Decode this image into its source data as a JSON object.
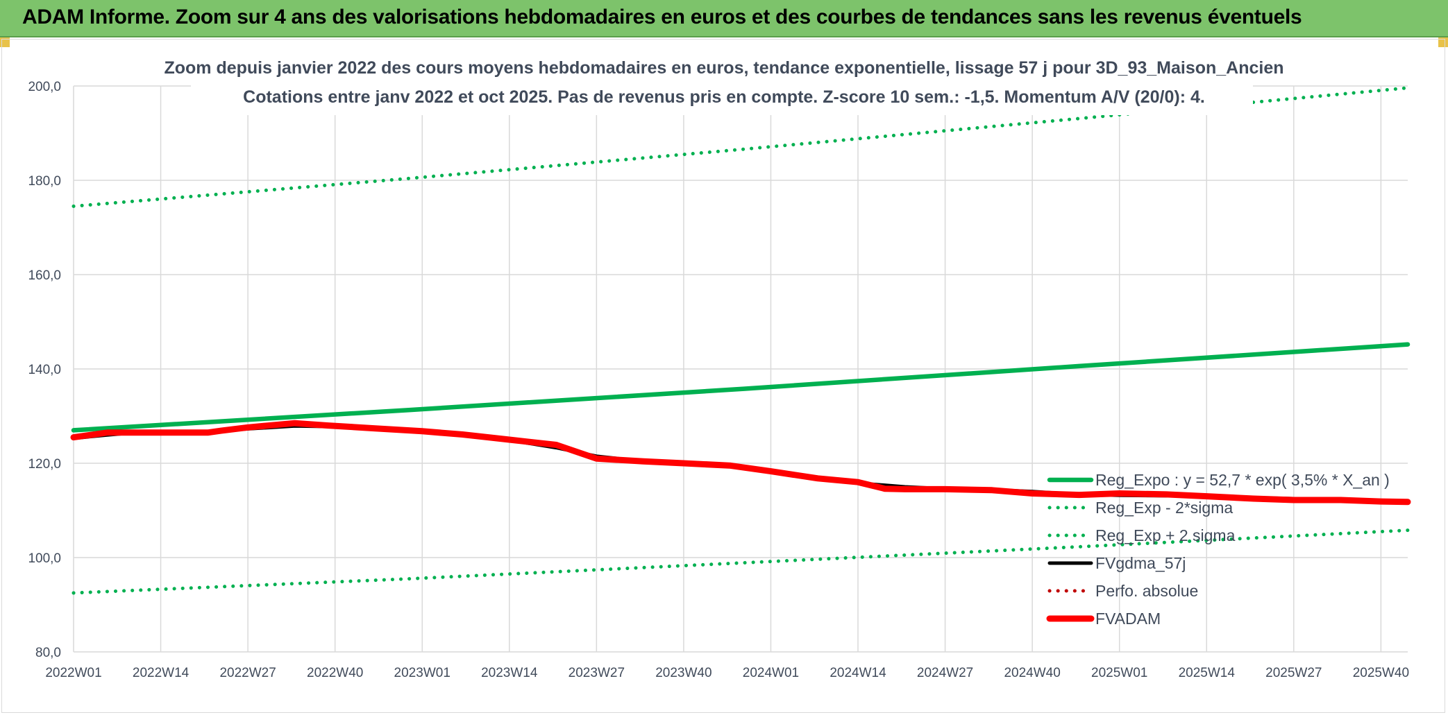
{
  "banner": {
    "title": "ADAM Informe. Zoom sur 4 ans des valorisations hebdomadaires en euros et des courbes de tendances sans les revenus éventuels"
  },
  "colors": {
    "banner_bg": "#7dc36b",
    "green": "#00b050",
    "black": "#000000",
    "red": "#ff0000",
    "grid": "#d9d9d9",
    "text": "#404a5a"
  },
  "chart_data": {
    "type": "line",
    "title_line1": "Zoom depuis janvier 2022 des cours moyens hebdomadaires en euros, tendance exponentielle, lissage 57 j pour 3D_93_Maison_Ancien",
    "title_line2": "Cotations entre janv 2022 et oct 2025. Pas de revenus pris en compte. Z-score 10 sem.: -1,5. Momentum A/V (20/0): 4.",
    "xlabel": "",
    "ylabel": "",
    "ylim": [
      80,
      200
    ],
    "y_ticks": [
      "200,0",
      "180,0",
      "160,0",
      "140,0",
      "120,0",
      "100,0",
      "80,0"
    ],
    "y_tick_values": [
      200,
      180,
      160,
      140,
      120,
      100,
      80
    ],
    "x_range": [
      0,
      199
    ],
    "x_tick_labels": [
      "2022W01",
      "2022W14",
      "2022W27",
      "2022W40",
      "2023W01",
      "2023W14",
      "2023W27",
      "2023W40",
      "2024W01",
      "2024W14",
      "2024W27",
      "2024W40",
      "2025W01",
      "2025W14",
      "2025W27",
      "2025W40"
    ],
    "x_tick_positions": [
      0,
      13,
      26,
      39,
      52,
      65,
      78,
      91,
      104,
      117,
      130,
      143,
      156,
      169,
      182,
      195
    ],
    "grid": true,
    "legend_position": "bottom-right",
    "series": [
      {
        "name": "Reg_Expo : y = 52,7 * exp( 3,5% *  X_an )",
        "style": "solid-thick",
        "color": "#00b050",
        "x": [
          0,
          50,
          100,
          150,
          199
        ],
        "values": [
          127.0,
          131.3,
          135.8,
          140.6,
          145.2
        ]
      },
      {
        "name": "Reg_Exp - 2*sigma",
        "style": "dotted",
        "color": "#00b050",
        "x": [
          0,
          50,
          100,
          150,
          199
        ],
        "values": [
          92.5,
          95.5,
          98.9,
          102.3,
          105.8
        ]
      },
      {
        "name": "Reg_Exp + 2 sigma",
        "style": "dotted",
        "color": "#00b050",
        "x": [
          0,
          50,
          100,
          150,
          199
        ],
        "values": [
          174.5,
          180.4,
          186.6,
          193.1,
          199.6
        ]
      },
      {
        "name": "FVgdma_57j",
        "style": "solid",
        "color": "#000000",
        "x": [
          0,
          5,
          10,
          20,
          26,
          33,
          38,
          45,
          52,
          58,
          65,
          72,
          78,
          85,
          91,
          98,
          104,
          111,
          117,
          124,
          130,
          137,
          143,
          150,
          156,
          163,
          169,
          176,
          182,
          189,
          195,
          199
        ],
        "values": [
          125.3,
          126.0,
          126.6,
          126.7,
          127.3,
          127.9,
          127.8,
          127.5,
          126.8,
          126.0,
          124.9,
          123.3,
          121.5,
          120.4,
          120.0,
          119.3,
          118.2,
          116.9,
          115.8,
          115.0,
          114.6,
          114.4,
          114.0,
          113.4,
          113.2,
          113.1,
          113.0,
          112.7,
          112.5,
          112.3,
          112.0,
          111.8
        ]
      },
      {
        "name": "Perfo. absolue",
        "style": "dotted",
        "color": "#c00000",
        "x": [],
        "values": []
      },
      {
        "name": "FVADAM",
        "style": "solid-thick",
        "color": "#ff0000",
        "x": [
          0,
          5,
          10,
          20,
          22,
          26,
          33,
          38,
          45,
          52,
          58,
          65,
          72,
          78,
          85,
          91,
          98,
          104,
          111,
          117,
          121,
          124,
          130,
          137,
          143,
          150,
          156,
          163,
          169,
          176,
          182,
          189,
          195,
          199
        ],
        "values": [
          125.5,
          126.5,
          126.5,
          126.5,
          126.9,
          127.6,
          128.5,
          128.0,
          127.4,
          126.8,
          126.1,
          125.0,
          123.9,
          121.0,
          120.4,
          120.0,
          119.5,
          118.3,
          116.8,
          116.0,
          114.6,
          114.5,
          114.5,
          114.3,
          113.6,
          113.3,
          113.6,
          113.4,
          113.0,
          112.5,
          112.2,
          112.2,
          111.9,
          111.8
        ]
      }
    ]
  }
}
